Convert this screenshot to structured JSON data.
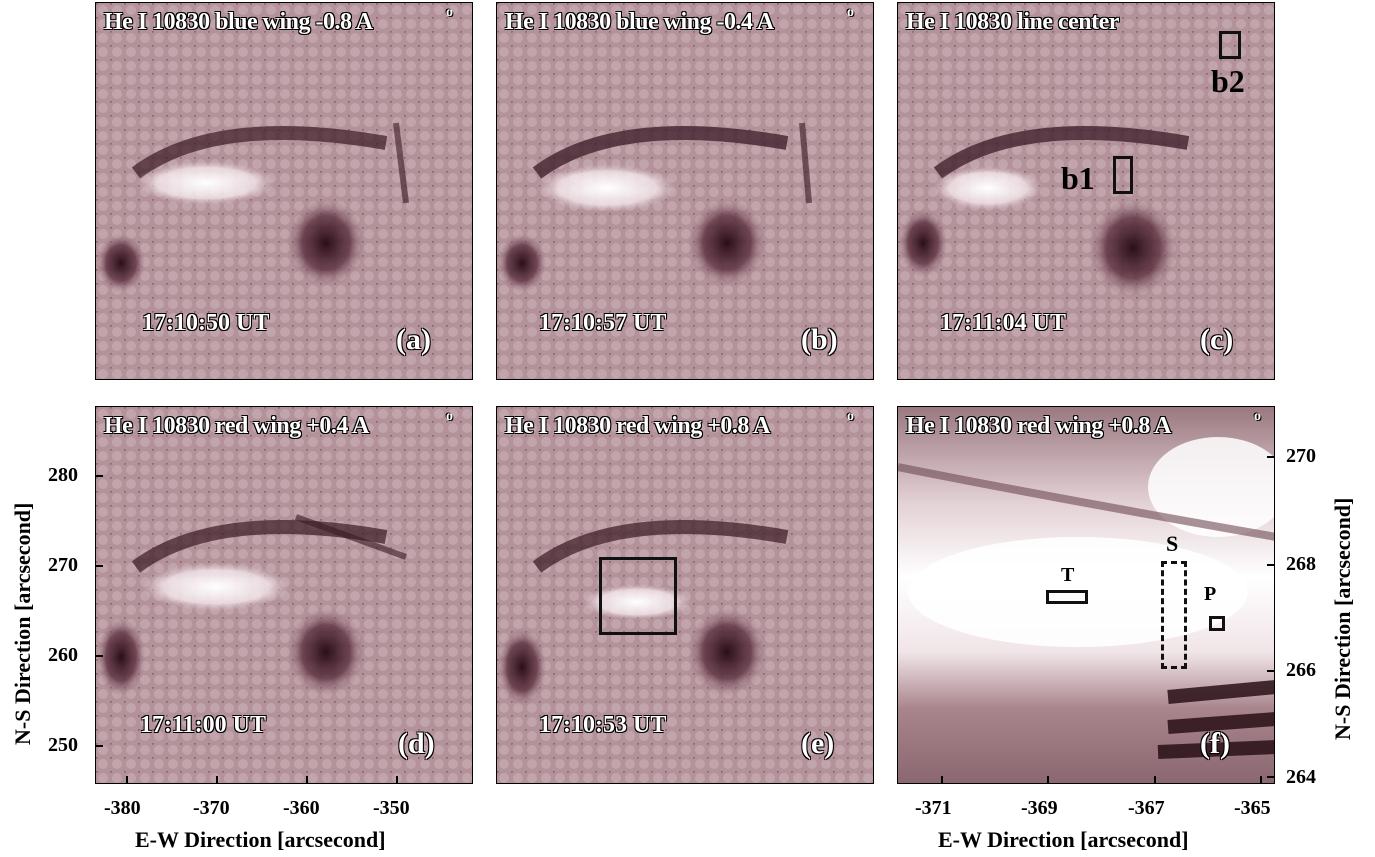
{
  "panels": [
    {
      "title": "He I 10830 blue wing -0.8 A",
      "ring": "o",
      "time": "17:10:50 UT",
      "label": "(a)"
    },
    {
      "title": "He I 10830 blue wing -0.4 A",
      "ring": "o",
      "time": "17:10:57 UT",
      "label": "(b)"
    },
    {
      "title": "He I 10830 line center",
      "time": "17:11:04 UT",
      "label": "(c)"
    },
    {
      "title": "He I 10830  red wing +0.4 A",
      "ring": "o",
      "time": "17:11:00 UT",
      "label": "(d)"
    },
    {
      "title": "He I 10830  red wing +0.8 A",
      "ring": "o",
      "time": "17:10:53 UT",
      "label": "(e)"
    },
    {
      "title": "He I 10830  red wing +0.8 A",
      "ring": "o",
      "label": "(f)"
    }
  ],
  "box_labels": {
    "b1": "b1",
    "b2": "b2",
    "T": "T",
    "S": "S",
    "P": "P"
  },
  "axes_left": {
    "y_ticks": [
      "280",
      "270",
      "260",
      "250"
    ],
    "x_ticks": [
      "-380",
      "-370",
      "-360",
      "-350"
    ],
    "xlabel": "E-W Direction [arcsecond]",
    "ylabel": "N-S Direction [arcsecond]"
  },
  "axes_right": {
    "y_ticks": [
      "270",
      "268",
      "266",
      "264"
    ],
    "x_ticks": [
      "-371",
      "-369",
      "-367",
      "-365"
    ],
    "xlabel": "E-W Direction [arcsecond]",
    "ylabel": "N-S Direction [arcsecond]"
  },
  "colors": {
    "base": "#a8848c",
    "dark": "#3a1a24",
    "bright": "#ffffff"
  }
}
